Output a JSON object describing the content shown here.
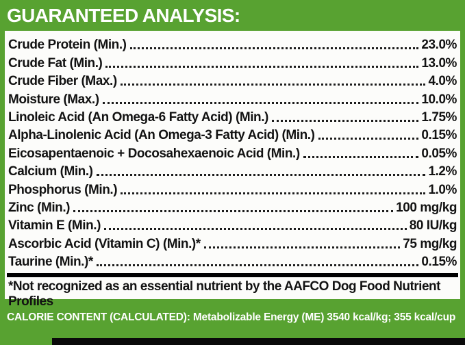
{
  "label": {
    "title": "GUARANTEED ANALYSIS:",
    "rows": [
      {
        "name": "Crude Protein (Min.)",
        "value": "23.0%"
      },
      {
        "name": "Crude Fat (Min.)",
        "value": "13.0%"
      },
      {
        "name": "Crude Fiber (Max.)",
        "value": "4.0%"
      },
      {
        "name": "Moisture (Max.)",
        "value": "10.0%"
      },
      {
        "name": "Linoleic Acid (An Omega-6 Fatty Acid) (Min.)",
        "value": "1.75%"
      },
      {
        "name": "Alpha-Linolenic Acid (An Omega-3 Fatty Acid) (Min.)",
        "value": "0.15%"
      },
      {
        "name": "Eicosapentaenoic + Docosahexaenoic Acid (Min.)",
        "value": "0.05%"
      },
      {
        "name": "Calcium (Min.)",
        "value": "1.2%"
      },
      {
        "name": "Phosphorus (Min.)",
        "value": "1.0%"
      },
      {
        "name": "Zinc (Min.)",
        "value": "100 mg/kg"
      },
      {
        "name": "Vitamin E (Min.)",
        "value": "80 IU/kg"
      },
      {
        "name": "Ascorbic Acid (Vitamin C) (Min.)*",
        "value": "75 mg/kg"
      },
      {
        "name": "Taurine (Min.)*",
        "value": "0.15%"
      }
    ],
    "footnote": "*Not recognized as an essential nutrient by the AAFCO Dog Food Nutrient Profiles",
    "calorie_content": "CALORIE CONTENT (CALCULATED): Metabolizable Energy (ME) 3540 kcal/kg; 355 kcal/cup",
    "colors": {
      "green": "#58a231",
      "text": "#121212",
      "white": "#ffffff"
    }
  }
}
